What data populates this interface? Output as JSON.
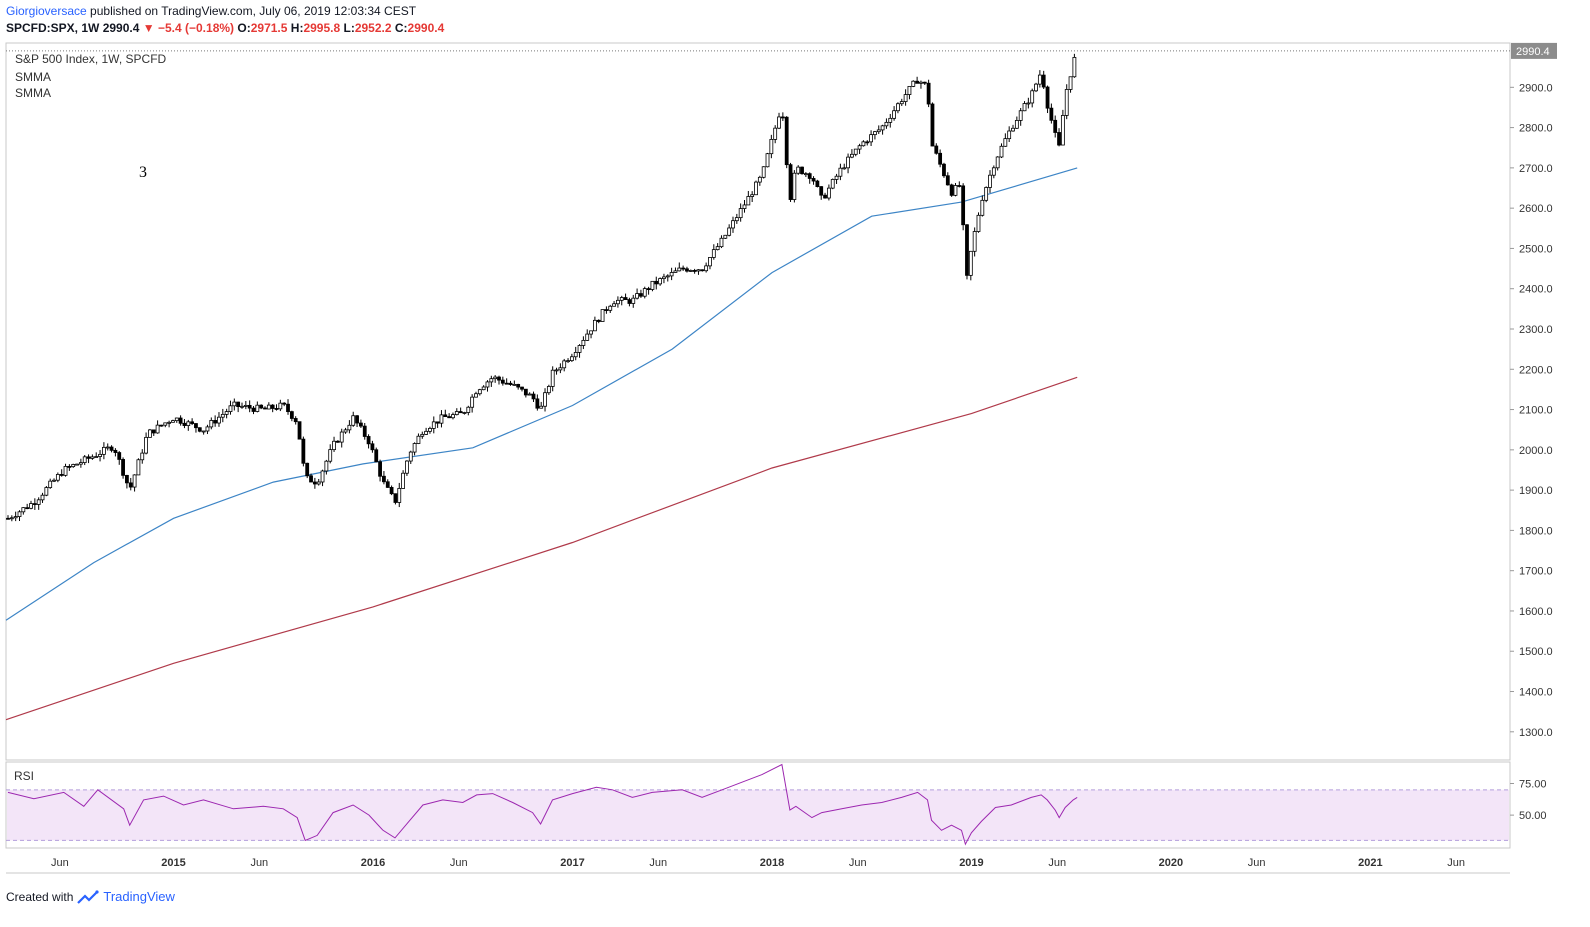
{
  "header": {
    "author": "Giorgioversace",
    "published": "published on TradingView.com, July 06, 2019 12:03:34 CEST",
    "symbol": "SPCFD:SPX, 1W",
    "last": "2990.4",
    "change": "−5.4 (−0.18%)",
    "o_label": "O:",
    "o_value": "2971.5",
    "h_label": "H:",
    "h_value": "2995.8",
    "l_label": "L:",
    "l_value": "2952.2",
    "c_label": "C:",
    "c_value": "2990.4"
  },
  "legend": {
    "title": "S&P 500 Index, 1W, SPCFD",
    "ma1": "SMMA",
    "ma2": "SMMA",
    "annotation": "3",
    "rsi": "RSI"
  },
  "footer": {
    "created_with": "Created with",
    "brand": "TradingView"
  },
  "colors": {
    "accent": "#2962ff",
    "down": "#e53935",
    "ma_fast": "#3d85c6",
    "ma_slow": "#b03a4a",
    "rsi_line": "#9c27b0",
    "rsi_band": "#f3e5f8",
    "candle": "#000000"
  },
  "chart_data": {
    "type": "line",
    "price_axis": {
      "range": [
        1230,
        3010
      ],
      "ticks": [
        1300,
        1400,
        1500,
        1600,
        1700,
        1800,
        1900,
        2000,
        2100,
        2200,
        2300,
        2400,
        2500,
        2600,
        2700,
        2800,
        2900
      ],
      "tick_labels": [
        "1300.0",
        "1400.0",
        "1500.0",
        "1600.0",
        "1700.0",
        "1800.0",
        "1900.0",
        "2000.0",
        "2100.0",
        "2200.0",
        "2300.0",
        "2400.0",
        "2500.0",
        "2600.0",
        "2700.0",
        "2800.0",
        "2900.0"
      ],
      "last_price_label": "2990.4",
      "last_price": 2990.4
    },
    "time_axis": {
      "range": [
        2014.16,
        2021.7
      ],
      "ticks": [
        {
          "t": 2014.43,
          "label": "Jun"
        },
        {
          "t": 2015.0,
          "label": "2015"
        },
        {
          "t": 2015.43,
          "label": "Jun"
        },
        {
          "t": 2016.0,
          "label": "2016"
        },
        {
          "t": 2016.43,
          "label": "Jun"
        },
        {
          "t": 2017.0,
          "label": "2017"
        },
        {
          "t": 2017.43,
          "label": "Jun"
        },
        {
          "t": 2018.0,
          "label": "2018"
        },
        {
          "t": 2018.43,
          "label": "Jun"
        },
        {
          "t": 2019.0,
          "label": "2019"
        },
        {
          "t": 2019.43,
          "label": "Jun"
        },
        {
          "t": 2020.0,
          "label": "2020"
        },
        {
          "t": 2020.43,
          "label": "Jun"
        },
        {
          "t": 2021.0,
          "label": "2021"
        },
        {
          "t": 2021.43,
          "label": "Jun"
        }
      ]
    },
    "price_path": [
      [
        2014.17,
        1830
      ],
      [
        2014.3,
        1870
      ],
      [
        2014.45,
        1950
      ],
      [
        2014.6,
        1985
      ],
      [
        2014.7,
        2010
      ],
      [
        2014.78,
        1900
      ],
      [
        2014.87,
        2040
      ],
      [
        2015.0,
        2080
      ],
      [
        2015.15,
        2050
      ],
      [
        2015.3,
        2110
      ],
      [
        2015.45,
        2100
      ],
      [
        2015.55,
        2110
      ],
      [
        2015.62,
        2070
      ],
      [
        2015.66,
        1930
      ],
      [
        2015.72,
        1920
      ],
      [
        2015.8,
        2010
      ],
      [
        2015.9,
        2080
      ],
      [
        2015.98,
        2020
      ],
      [
        2016.05,
        1920
      ],
      [
        2016.11,
        1870
      ],
      [
        2016.18,
        1990
      ],
      [
        2016.25,
        2050
      ],
      [
        2016.35,
        2080
      ],
      [
        2016.45,
        2090
      ],
      [
        2016.52,
        2150
      ],
      [
        2016.6,
        2180
      ],
      [
        2016.7,
        2160
      ],
      [
        2016.8,
        2130
      ],
      [
        2016.84,
        2100
      ],
      [
        2016.9,
        2190
      ],
      [
        2017.0,
        2240
      ],
      [
        2017.12,
        2320
      ],
      [
        2017.2,
        2370
      ],
      [
        2017.3,
        2370
      ],
      [
        2017.4,
        2410
      ],
      [
        2017.55,
        2450
      ],
      [
        2017.65,
        2450
      ],
      [
        2017.75,
        2520
      ],
      [
        2017.85,
        2600
      ],
      [
        2017.95,
        2680
      ],
      [
        2018.05,
        2860
      ],
      [
        2018.09,
        2620
      ],
      [
        2018.12,
        2700
      ],
      [
        2018.2,
        2680
      ],
      [
        2018.25,
        2620
      ],
      [
        2018.35,
        2700
      ],
      [
        2018.45,
        2760
      ],
      [
        2018.55,
        2800
      ],
      [
        2018.65,
        2870
      ],
      [
        2018.73,
        2920
      ],
      [
        2018.78,
        2900
      ],
      [
        2018.8,
        2760
      ],
      [
        2018.85,
        2700
      ],
      [
        2018.9,
        2640
      ],
      [
        2018.95,
        2660
      ],
      [
        2018.97,
        2400
      ],
      [
        2019.0,
        2500
      ],
      [
        2019.05,
        2620
      ],
      [
        2019.12,
        2720
      ],
      [
        2019.2,
        2800
      ],
      [
        2019.3,
        2880
      ],
      [
        2019.35,
        2940
      ],
      [
        2019.38,
        2860
      ],
      [
        2019.42,
        2780
      ],
      [
        2019.44,
        2750
      ],
      [
        2019.47,
        2880
      ],
      [
        2019.51,
        2960
      ],
      [
        2019.53,
        2990.4
      ]
    ],
    "series": [
      {
        "values": [
          [
            2014.16,
            1577
          ],
          [
            2014.6,
            1720
          ],
          [
            2015.0,
            1830
          ],
          [
            2015.5,
            1920
          ],
          [
            2015.95,
            1965
          ],
          [
            2016.5,
            2005
          ],
          [
            2017.0,
            2110
          ],
          [
            2017.5,
            2250
          ],
          [
            2018.0,
            2440
          ],
          [
            2018.5,
            2580
          ],
          [
            2018.95,
            2615
          ],
          [
            2019.53,
            2700
          ]
        ]
      },
      {
        "values": [
          [
            2014.16,
            1330
          ],
          [
            2015.0,
            1470
          ],
          [
            2016.0,
            1610
          ],
          [
            2017.0,
            1770
          ],
          [
            2018.0,
            1955
          ],
          [
            2019.0,
            2090
          ],
          [
            2019.53,
            2180
          ]
        ]
      }
    ],
    "rsi": {
      "range": [
        24,
        92
      ],
      "levels": [
        70,
        30
      ],
      "ticks": [
        75,
        50
      ],
      "tick_labels": [
        "75.00",
        "50.00"
      ],
      "values": [
        [
          2014.17,
          68
        ],
        [
          2014.3,
          63
        ],
        [
          2014.45,
          68
        ],
        [
          2014.55,
          57
        ],
        [
          2014.62,
          70
        ],
        [
          2014.75,
          55
        ],
        [
          2014.78,
          42
        ],
        [
          2014.85,
          62
        ],
        [
          2014.95,
          65
        ],
        [
          2015.05,
          58
        ],
        [
          2015.15,
          62
        ],
        [
          2015.3,
          55
        ],
        [
          2015.45,
          57
        ],
        [
          2015.55,
          55
        ],
        [
          2015.62,
          48
        ],
        [
          2015.66,
          30
        ],
        [
          2015.72,
          34
        ],
        [
          2015.8,
          52
        ],
        [
          2015.9,
          58
        ],
        [
          2015.98,
          50
        ],
        [
          2016.05,
          38
        ],
        [
          2016.11,
          32
        ],
        [
          2016.18,
          45
        ],
        [
          2016.25,
          58
        ],
        [
          2016.35,
          62
        ],
        [
          2016.45,
          60
        ],
        [
          2016.52,
          66
        ],
        [
          2016.6,
          67
        ],
        [
          2016.7,
          60
        ],
        [
          2016.8,
          52
        ],
        [
          2016.84,
          43
        ],
        [
          2016.9,
          62
        ],
        [
          2017.0,
          67
        ],
        [
          2017.12,
          72
        ],
        [
          2017.2,
          70
        ],
        [
          2017.3,
          64
        ],
        [
          2017.4,
          68
        ],
        [
          2017.55,
          70
        ],
        [
          2017.65,
          64
        ],
        [
          2017.75,
          70
        ],
        [
          2017.85,
          76
        ],
        [
          2017.95,
          82
        ],
        [
          2018.05,
          90
        ],
        [
          2018.09,
          54
        ],
        [
          2018.12,
          57
        ],
        [
          2018.2,
          48
        ],
        [
          2018.25,
          52
        ],
        [
          2018.35,
          55
        ],
        [
          2018.45,
          58
        ],
        [
          2018.55,
          60
        ],
        [
          2018.65,
          64
        ],
        [
          2018.73,
          68
        ],
        [
          2018.78,
          62
        ],
        [
          2018.8,
          46
        ],
        [
          2018.85,
          38
        ],
        [
          2018.9,
          42
        ],
        [
          2018.95,
          38
        ],
        [
          2018.97,
          27
        ],
        [
          2019.0,
          36
        ],
        [
          2019.05,
          45
        ],
        [
          2019.12,
          56
        ],
        [
          2019.2,
          58
        ],
        [
          2019.3,
          64
        ],
        [
          2019.35,
          66
        ],
        [
          2019.38,
          62
        ],
        [
          2019.42,
          54
        ],
        [
          2019.44,
          48
        ],
        [
          2019.47,
          56
        ],
        [
          2019.51,
          62
        ],
        [
          2019.53,
          64
        ]
      ]
    }
  }
}
